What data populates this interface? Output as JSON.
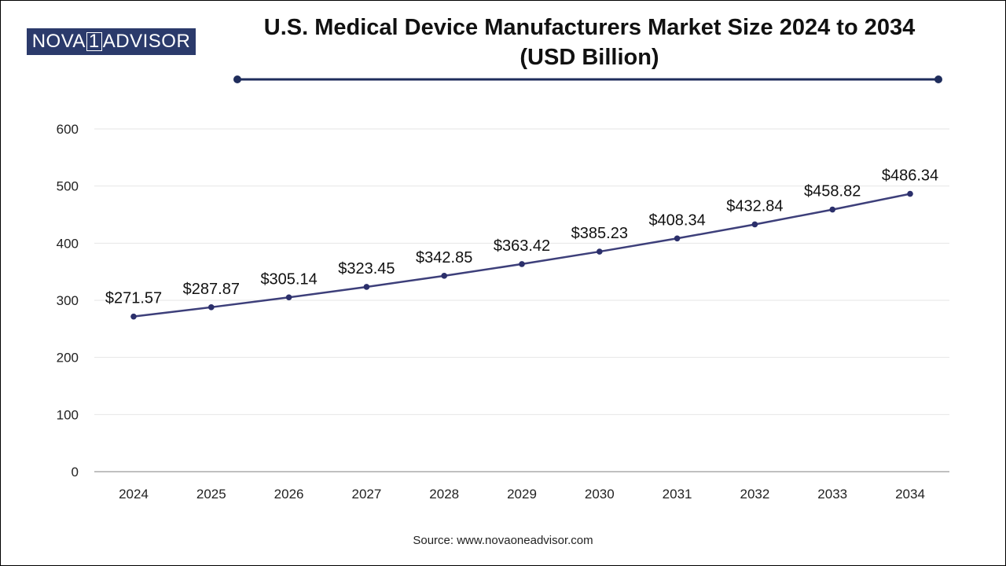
{
  "logo": {
    "part1": "NOVA",
    "part2": "1",
    "part3": "ADVISOR"
  },
  "title": {
    "line1": "U.S. Medical Device Manufacturers Market Size 2024 to 2034",
    "line2": "(USD Billion)"
  },
  "source": "Source: www.novaoneadvisor.com",
  "colors": {
    "line": "#3d3f7a",
    "marker": "#2b2f6b",
    "accent": "#1f2d5c",
    "grid": "#e6e6e6"
  },
  "chart_data": {
    "type": "line",
    "title": "U.S. Medical Device Manufacturers Market Size 2024 to 2034 (USD Billion)",
    "xlabel": "",
    "ylabel": "",
    "categories": [
      "2024",
      "2025",
      "2026",
      "2027",
      "2028",
      "2029",
      "2030",
      "2031",
      "2032",
      "2033",
      "2034"
    ],
    "values": [
      271.57,
      287.87,
      305.14,
      323.45,
      342.85,
      363.42,
      385.23,
      408.34,
      432.84,
      458.82,
      486.34
    ],
    "data_labels": [
      "$271.57",
      "$287.87",
      "$305.14",
      "$323.45",
      "$342.85",
      "$363.42",
      "$385.23",
      "$408.34",
      "$432.84",
      "$458.82",
      "$486.34"
    ],
    "ylim": [
      0,
      600
    ],
    "yticks": [
      "0",
      "100",
      "200",
      "300",
      "400",
      "500",
      "600"
    ],
    "grid": true
  }
}
